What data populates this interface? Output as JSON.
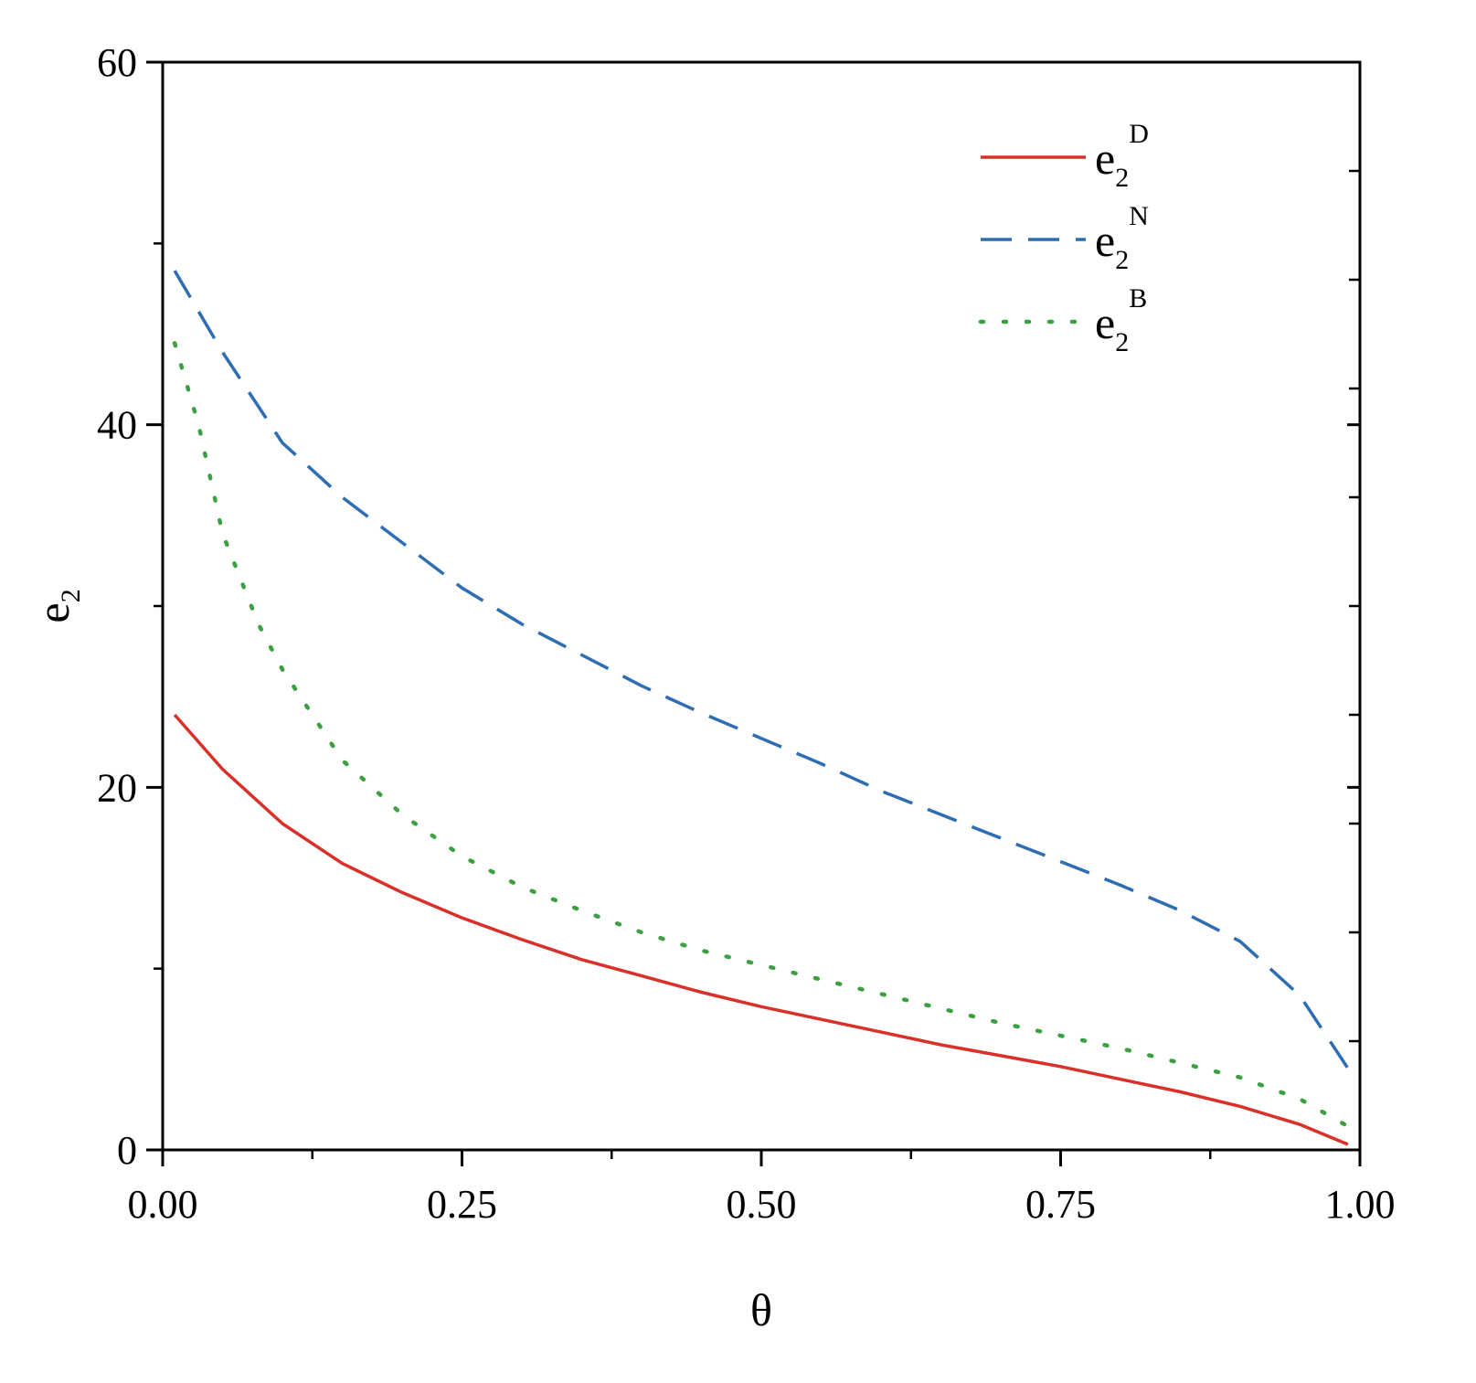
{
  "chart_data": {
    "type": "line",
    "xlabel": "θ",
    "ylabel": {
      "base": "e",
      "sub": "2"
    },
    "xlim": [
      0,
      1
    ],
    "ylim": [
      0,
      60
    ],
    "xticks": [
      "0.00",
      "0.25",
      "0.50",
      "0.75",
      "1.00"
    ],
    "xtick_values": [
      0,
      0.25,
      0.5,
      0.75,
      1.0
    ],
    "yticks": [
      "0",
      "20",
      "40",
      "60"
    ],
    "ytick_values": [
      0,
      20,
      40,
      60
    ],
    "grid": false,
    "legend_position": "top-right",
    "series": [
      {
        "name": "e2D",
        "label": {
          "base": "e",
          "sub": "2",
          "sup": "D"
        },
        "color": "#d9302a",
        "style": "solid",
        "x": [
          0.01,
          0.05,
          0.1,
          0.15,
          0.2,
          0.25,
          0.3,
          0.35,
          0.4,
          0.45,
          0.5,
          0.55,
          0.6,
          0.65,
          0.7,
          0.75,
          0.8,
          0.85,
          0.9,
          0.95,
          0.99
        ],
        "y": [
          24.0,
          21.0,
          18.0,
          15.8,
          14.2,
          12.8,
          11.6,
          10.5,
          9.6,
          8.7,
          7.9,
          7.2,
          6.5,
          5.8,
          5.2,
          4.6,
          3.9,
          3.2,
          2.4,
          1.4,
          0.3
        ]
      },
      {
        "name": "e2N",
        "label": {
          "base": "e",
          "sub": "2",
          "sup": "N"
        },
        "color": "#2e6db4",
        "style": "dashed",
        "x": [
          0.01,
          0.05,
          0.1,
          0.15,
          0.2,
          0.25,
          0.3,
          0.35,
          0.4,
          0.45,
          0.5,
          0.55,
          0.6,
          0.65,
          0.7,
          0.75,
          0.8,
          0.85,
          0.9,
          0.95,
          0.99
        ],
        "y": [
          48.5,
          44.0,
          39.0,
          36.0,
          33.5,
          31.0,
          29.0,
          27.3,
          25.6,
          24.1,
          22.7,
          21.3,
          19.8,
          18.5,
          17.2,
          15.9,
          14.6,
          13.2,
          11.5,
          8.5,
          4.5
        ]
      },
      {
        "name": "e2B",
        "label": {
          "base": "e",
          "sub": "2",
          "sup": "B"
        },
        "color": "#3aa040",
        "style": "dotted",
        "x": [
          0.01,
          0.03,
          0.05,
          0.08,
          0.1,
          0.13,
          0.15,
          0.2,
          0.25,
          0.3,
          0.35,
          0.4,
          0.45,
          0.5,
          0.55,
          0.6,
          0.65,
          0.7,
          0.75,
          0.8,
          0.85,
          0.9,
          0.95,
          0.99
        ],
        "y": [
          44.5,
          40.0,
          34.0,
          29.0,
          26.5,
          23.5,
          21.5,
          18.5,
          16.2,
          14.5,
          13.2,
          12.0,
          11.0,
          10.2,
          9.4,
          8.6,
          7.8,
          7.0,
          6.3,
          5.6,
          4.8,
          4.0,
          2.8,
          1.3
        ]
      }
    ]
  }
}
